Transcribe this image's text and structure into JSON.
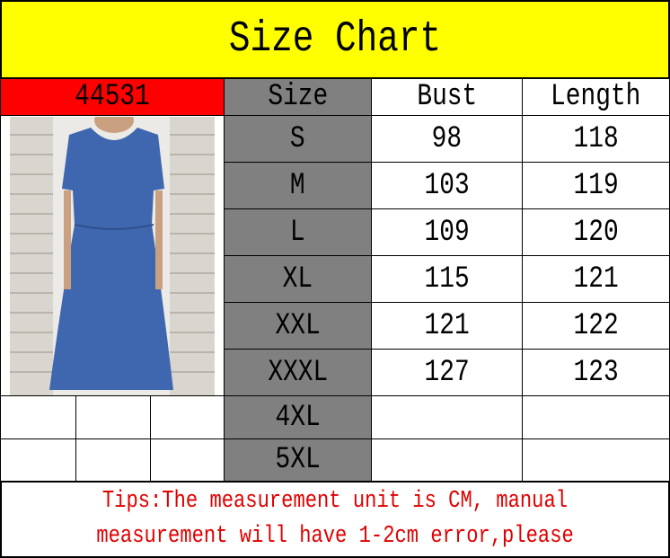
{
  "title": "Size Chart",
  "product_code": "44531",
  "colors": {
    "title_bg": "#ffff00",
    "code_bg": "#ff0000",
    "size_col_bg": "#808080",
    "tips_text": "#e00000"
  },
  "headers": [
    "Size",
    "Bust",
    "Length"
  ],
  "rows": [
    {
      "size": "S",
      "bust": "98",
      "length": "118"
    },
    {
      "size": "M",
      "bust": "103",
      "length": "119"
    },
    {
      "size": "L",
      "bust": "109",
      "length": "120"
    },
    {
      "size": "XL",
      "bust": "115",
      "length": "121"
    },
    {
      "size": "XXL",
      "bust": "121",
      "length": "122"
    },
    {
      "size": "XXXL",
      "bust": "127",
      "length": "123"
    },
    {
      "size": "4XL",
      "bust": "",
      "length": ""
    },
    {
      "size": "5XL",
      "bust": "",
      "length": ""
    }
  ],
  "tips": {
    "line1": "Tips:The  measurement unit is CM, manual",
    "line2": "measurement will  have  1-2cm  error,please"
  },
  "image": "blue-dress-photo"
}
